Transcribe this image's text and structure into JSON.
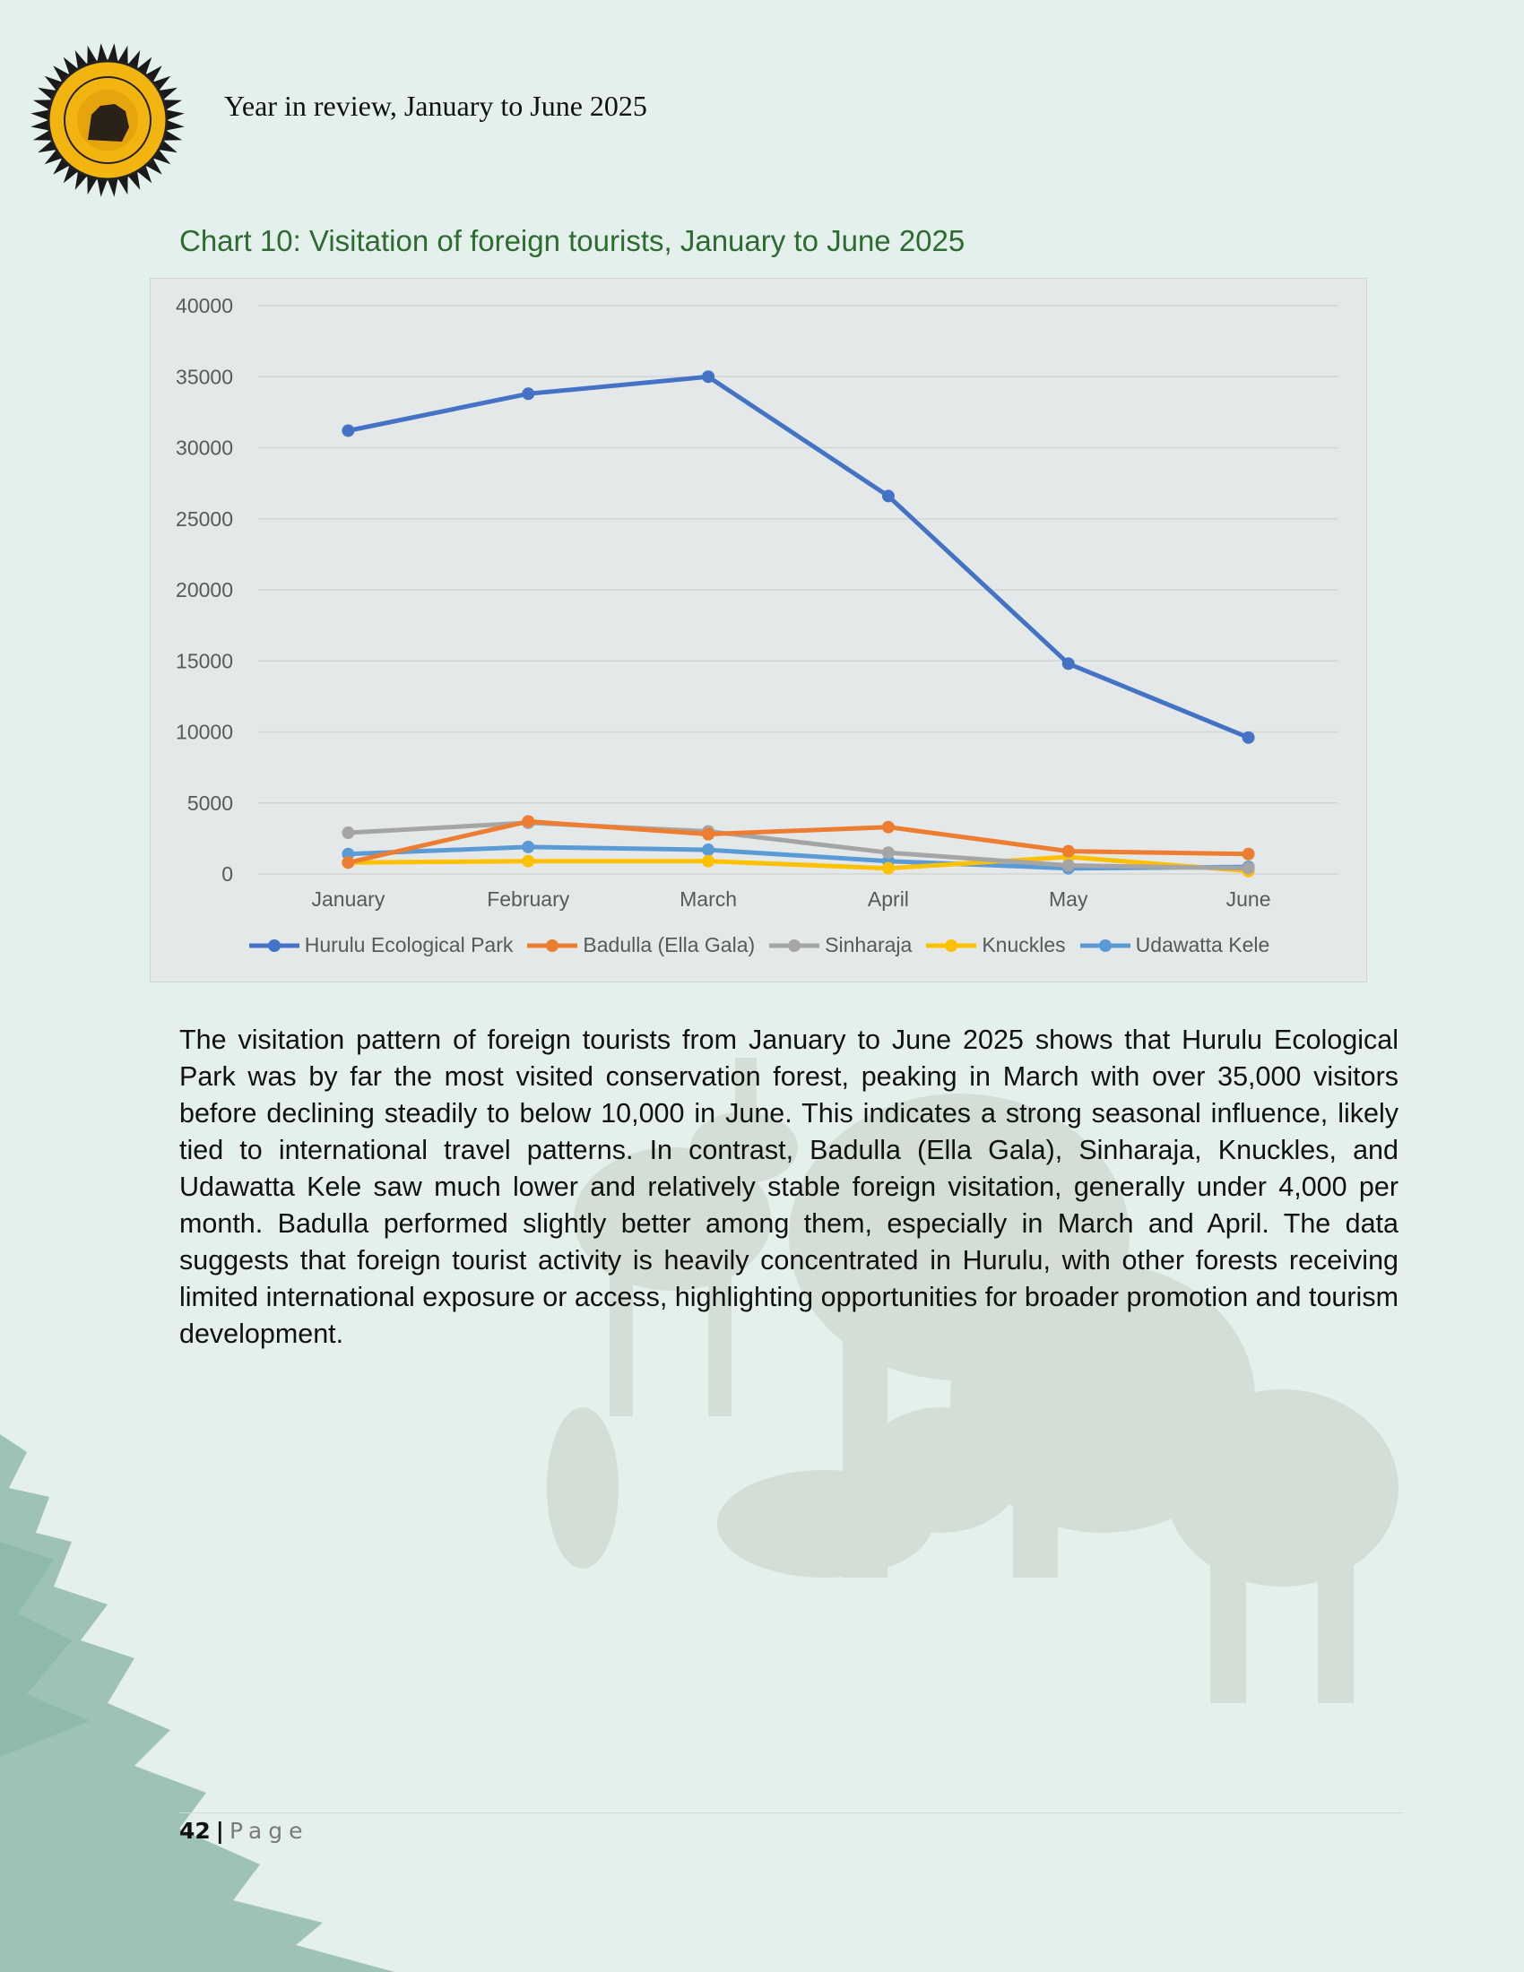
{
  "header": {
    "title": "Year in review, January to June 2025"
  },
  "colors": {
    "series": [
      "#4472c4",
      "#ed7d31",
      "#a5a5a5",
      "#ffc000",
      "#5b9bd5"
    ],
    "title": "#2e6b30",
    "logo": "#f2b50f"
  },
  "icons": {
    "logo": "sltda-logo-icon"
  },
  "chart_data": {
    "type": "line",
    "title": "Chart 10: Visitation of foreign tourists, January to June 2025",
    "categories": [
      "January",
      "February",
      "March",
      "April",
      "May",
      "June"
    ],
    "ylim": [
      0,
      40000
    ],
    "yticks": [
      "0",
      "5000",
      "10000",
      "15000",
      "20000",
      "25000",
      "30000",
      "35000",
      "40000"
    ],
    "grid": true,
    "legend": "bottom",
    "series": [
      {
        "name": "Hurulu Ecological Park",
        "values": [
          31200,
          33800,
          35000,
          26600,
          14800,
          9600
        ]
      },
      {
        "name": "Badulla (Ella Gala)",
        "values": [
          800,
          3700,
          2800,
          3300,
          1600,
          1400
        ]
      },
      {
        "name": "Sinharaja",
        "values": [
          2900,
          3600,
          3000,
          1500,
          600,
          400
        ]
      },
      {
        "name": "Knuckles",
        "values": [
          800,
          900,
          900,
          400,
          1200,
          200
        ]
      },
      {
        "name": "Udawatta Kele",
        "values": [
          1400,
          1900,
          1700,
          900,
          400,
          500
        ]
      }
    ]
  },
  "body": {
    "paragraph": "The visitation pattern of foreign tourists from January to June 2025 shows that Hurulu Ecological Park was by far the most visited conservation forest, peaking in March with over 35,000 visitors before declining steadily to below 10,000 in June. This indicates a strong seasonal influence, likely tied to international travel patterns. In contrast, Badulla (Ella Gala), Sinharaja, Knuckles, and Udawatta Kele saw much lower and relatively stable foreign visitation, generally under 4,000 per month. Badulla performed slightly better among them, especially in March and April. The data suggests that foreign tourist activity is heavily concentrated in Hurulu, with other forests receiving limited international exposure or access, highlighting opportunities for broader promotion and tourism development."
  },
  "footer": {
    "page_number": "42",
    "separator": "|",
    "page_word": "Page"
  }
}
